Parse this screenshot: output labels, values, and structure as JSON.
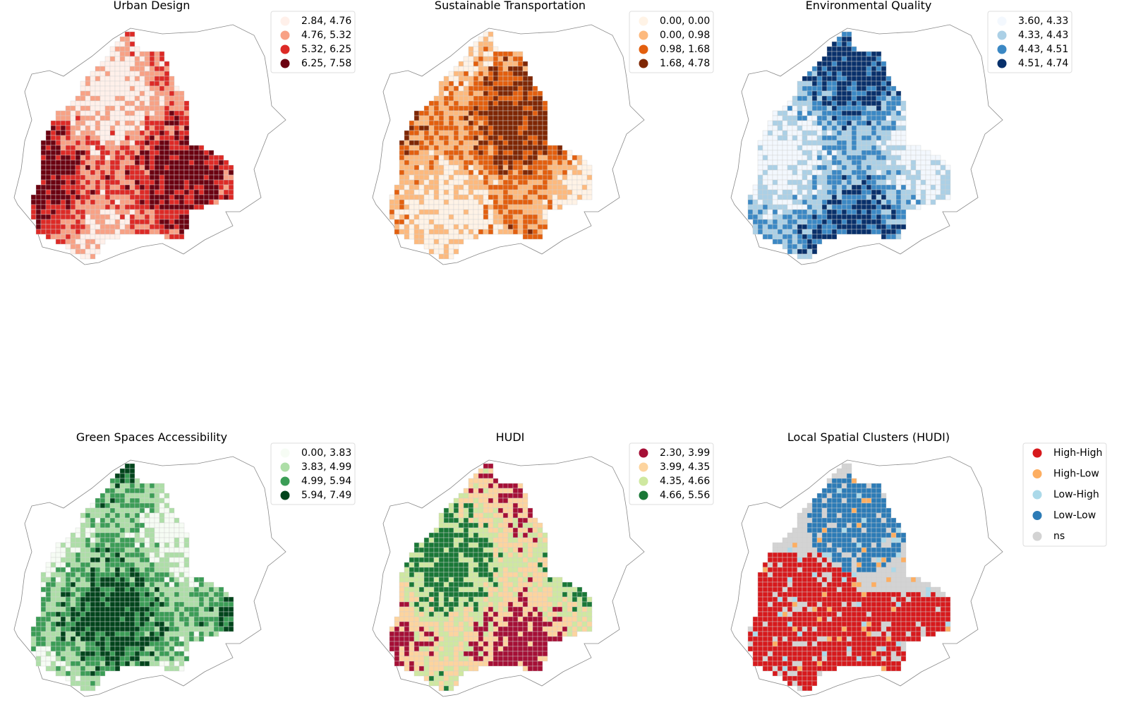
{
  "panels": [
    {
      "title": "Urban Design",
      "legend": [
        {
          "label": "2.84, 4.76",
          "color": "#fff0ea"
        },
        {
          "label": "4.76, 5.32",
          "color": "#f8a185"
        },
        {
          "label": "5.32, 6.25",
          "color": "#dd2a26"
        },
        {
          "label": "6.25, 7.58",
          "color": "#6b0010"
        }
      ]
    },
    {
      "title": "Sustainable Transportation",
      "legend": [
        {
          "label": "0.00, 0.00",
          "color": "#fff3e6"
        },
        {
          "label": "0.00, 0.98",
          "color": "#fdb97d"
        },
        {
          "label": "0.98, 1.68",
          "color": "#e35f0e"
        },
        {
          "label": "1.68, 4.78",
          "color": "#7f2704"
        }
      ]
    },
    {
      "title": "Environmental Quality",
      "legend": [
        {
          "label": "3.60, 4.33",
          "color": "#f3f8fe"
        },
        {
          "label": "4.33, 4.43",
          "color": "#abd0e6"
        },
        {
          "label": "4.43, 4.51",
          "color": "#3b88c4"
        },
        {
          "label": "4.51, 4.74",
          "color": "#08306b"
        }
      ]
    },
    {
      "title": "Green Spaces Accessibility",
      "legend": [
        {
          "label": "0.00, 3.83",
          "color": "#f6fcf4"
        },
        {
          "label": "3.83, 4.99",
          "color": "#addea7"
        },
        {
          "label": "4.99, 5.94",
          "color": "#3b9d56"
        },
        {
          "label": "5.94, 7.49",
          "color": "#00441b"
        }
      ]
    },
    {
      "title": "HUDI",
      "legend": [
        {
          "label": "2.30, 3.99",
          "color": "#a50f36"
        },
        {
          "label": "3.99, 4.35",
          "color": "#fdd49e"
        },
        {
          "label": "4.35, 4.66",
          "color": "#cfe8a0"
        },
        {
          "label": "4.66, 5.56",
          "color": "#1a7837"
        }
      ]
    },
    {
      "title": "Local Spatial Clusters (HUDI)",
      "legend": [
        {
          "label": "High-High",
          "color": "#d7191c"
        },
        {
          "label": "High-Low",
          "color": "#fdae61"
        },
        {
          "label": "Low-High",
          "color": "#abd9e9"
        },
        {
          "label": "Low-Low",
          "color": "#2c7bb6"
        },
        {
          "label": "ns",
          "color": "#d3d3d3"
        }
      ]
    }
  ]
}
